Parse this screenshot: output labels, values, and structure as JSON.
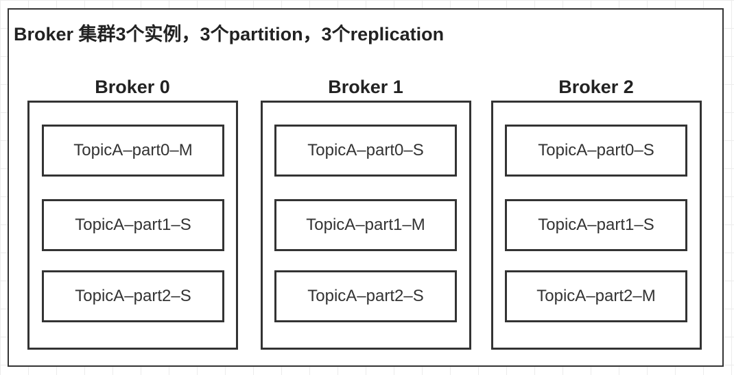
{
  "diagram": {
    "title": "Broker 集群3个实例，3个partition，3个replication",
    "brokers": [
      {
        "name": "Broker 0",
        "partitions": [
          "TopicA–part0–M",
          "TopicA–part1–S",
          "TopicA–part2–S"
        ]
      },
      {
        "name": "Broker 1",
        "partitions": [
          "TopicA–part0–S",
          "TopicA–part1–M",
          "TopicA–part2–S"
        ]
      },
      {
        "name": "Broker 2",
        "partitions": [
          "TopicA–part0–S",
          "TopicA–part1–S",
          "TopicA–part2–M"
        ]
      }
    ]
  }
}
